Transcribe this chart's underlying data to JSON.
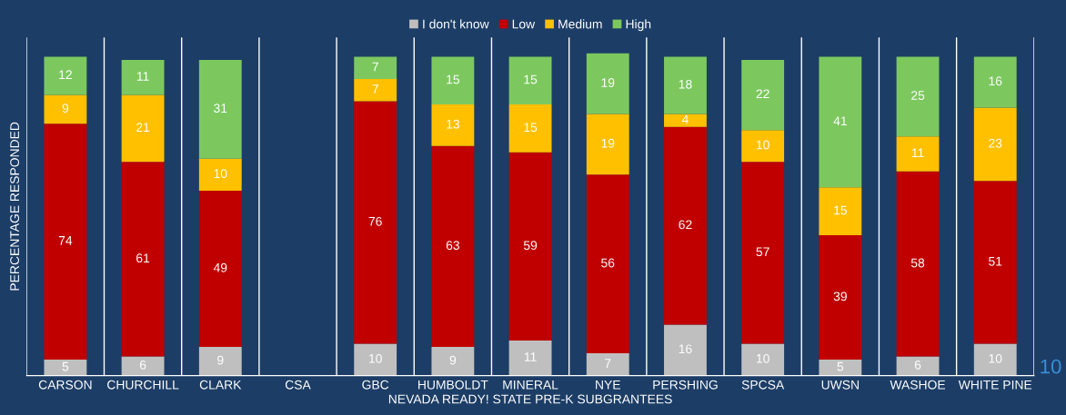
{
  "chart_data": {
    "type": "bar",
    "stacked": true,
    "xlabel": "NEVADA READY! STATE PRE-K SUBGRANTEES",
    "ylabel": "PERCENTAGE RESPONDED",
    "categories": [
      "CARSON",
      "CHURCHILL",
      "CLARK",
      "CSA",
      "GBC",
      "HUMBOLDT",
      "MINERAL",
      "NYE",
      "PERSHING",
      "SPCSA",
      "UWSN",
      "WASHOE",
      "WHITE PINE"
    ],
    "series": [
      {
        "name": "I don't know",
        "color": "#bfbfbf",
        "values": [
          5,
          6,
          9,
          null,
          10,
          9,
          11,
          7,
          16,
          10,
          5,
          6,
          10
        ]
      },
      {
        "name": "Low",
        "color": "#c00000",
        "values": [
          74,
          61,
          49,
          null,
          76,
          63,
          59,
          56,
          62,
          57,
          39,
          58,
          51
        ]
      },
      {
        "name": "Medium",
        "color": "#ffc000",
        "values": [
          9,
          21,
          10,
          null,
          7,
          13,
          15,
          19,
          4,
          10,
          15,
          11,
          23
        ]
      },
      {
        "name": "High",
        "color": "#7cc85f",
        "values": [
          12,
          11,
          31,
          null,
          7,
          15,
          15,
          19,
          18,
          22,
          41,
          25,
          16
        ]
      }
    ],
    "data_labels": true,
    "legend": "top",
    "grid": "x",
    "annotations": [
      "10"
    ]
  }
}
